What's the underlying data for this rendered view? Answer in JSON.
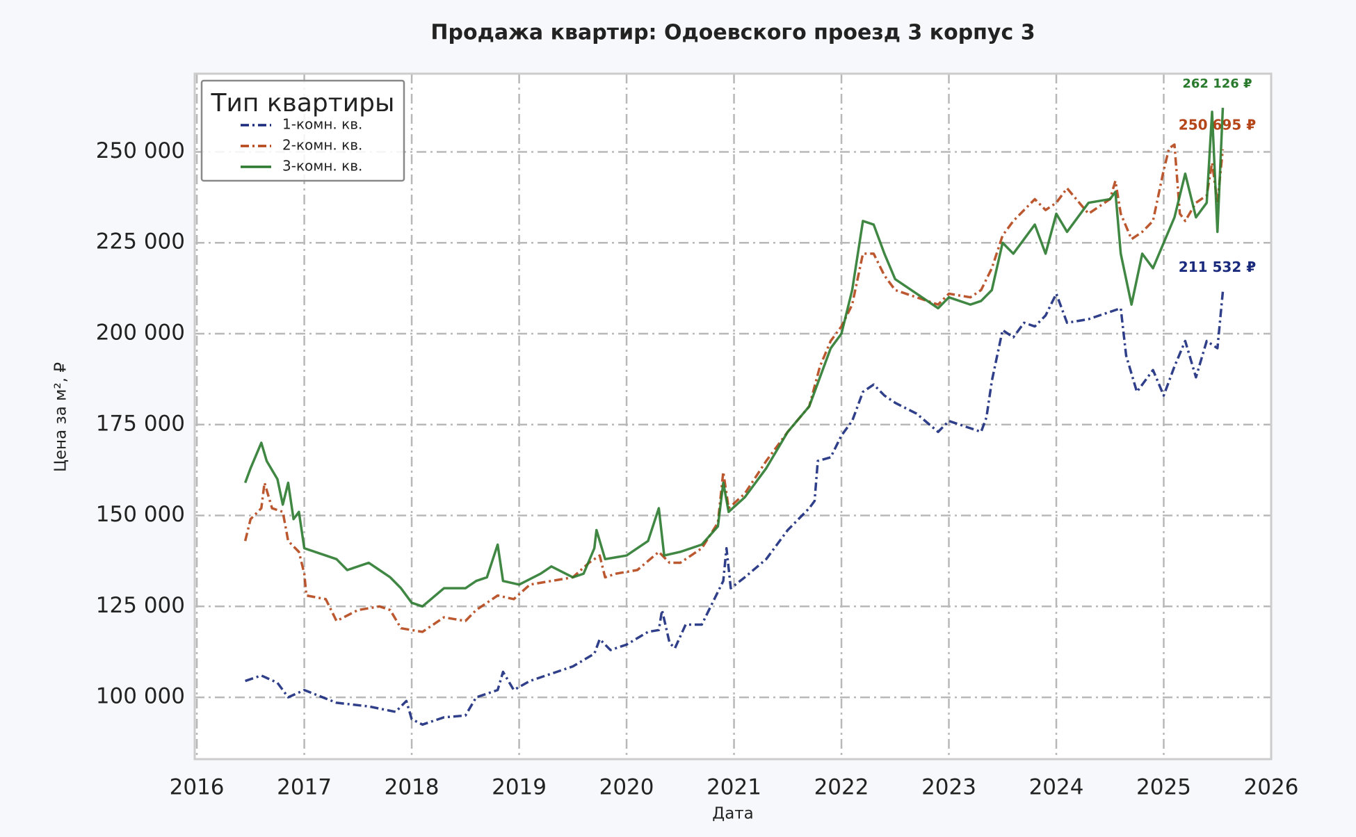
{
  "chart_data": {
    "type": "line",
    "title": "Продажа квартир: Одоевского проезд 3 корпус 3",
    "x_label": "Дата",
    "y_label": "Цена за м², ₽",
    "xlim": [
      2015.98,
      2026.0
    ],
    "xticks": [
      2016,
      2017,
      2018,
      2019,
      2020,
      2021,
      2022,
      2023,
      2024,
      2025,
      2026
    ],
    "ylim": [
      83000,
      271500
    ],
    "yticks": [
      {
        "value": 100000,
        "label": "100 000"
      },
      {
        "value": 125000,
        "label": "125 000"
      },
      {
        "value": 150000,
        "label": "150 000"
      },
      {
        "value": 175000,
        "label": "175 000"
      },
      {
        "value": 200000,
        "label": "200 000"
      },
      {
        "value": 225000,
        "label": "225 000"
      },
      {
        "value": 250000,
        "label": "250 000"
      }
    ],
    "grid": true,
    "legend": {
      "title": "Тип квартиры",
      "loc": "upper left"
    },
    "series": [
      {
        "name": "1-комн. кв.",
        "color": "#1a2a7c",
        "linestyle": "dashdot",
        "end_label": "211 532 ₽",
        "x": [
          2016.45,
          2016.6,
          2016.75,
          2016.85,
          2017.0,
          2017.3,
          2017.6,
          2017.85,
          2017.95,
          2018.0,
          2018.1,
          2018.3,
          2018.5,
          2018.6,
          2018.8,
          2018.85,
          2018.95,
          2019.1,
          2019.3,
          2019.5,
          2019.7,
          2019.75,
          2019.85,
          2020.0,
          2020.2,
          2020.3,
          2020.33,
          2020.4,
          2020.45,
          2020.55,
          2020.7,
          2020.8,
          2020.9,
          2020.93,
          2020.97,
          2021.1,
          2021.3,
          2021.5,
          2021.7,
          2021.75,
          2021.78,
          2021.9,
          2022.0,
          2022.1,
          2022.2,
          2022.3,
          2022.4,
          2022.5,
          2022.7,
          2022.9,
          2023.0,
          2023.2,
          2023.3,
          2023.35,
          2023.4,
          2023.5,
          2023.6,
          2023.7,
          2023.8,
          2023.9,
          2024.0,
          2024.1,
          2024.3,
          2024.5,
          2024.6,
          2024.65,
          2024.75,
          2024.9,
          2025.0,
          2025.1,
          2025.2,
          2025.3,
          2025.4,
          2025.5,
          2025.55
        ],
        "values": [
          104500,
          106000,
          104000,
          100000,
          102000,
          98500,
          97500,
          96000,
          99000,
          94000,
          92500,
          94500,
          95000,
          100000,
          102000,
          107000,
          102000,
          104500,
          106500,
          108500,
          112000,
          116000,
          113000,
          114500,
          118000,
          118500,
          124000,
          115000,
          113500,
          120000,
          120000,
          126000,
          132000,
          141000,
          130000,
          133000,
          138000,
          146000,
          152000,
          154000,
          165000,
          166000,
          172000,
          176000,
          184000,
          186000,
          183000,
          181000,
          178000,
          173000,
          176000,
          174000,
          173000,
          177000,
          187000,
          201000,
          199000,
          203000,
          202000,
          205000,
          211000,
          203000,
          204000,
          206000,
          207000,
          194000,
          184000,
          190000,
          183000,
          191000,
          198000,
          188000,
          198000,
          196000,
          211532
        ]
      },
      {
        "name": "2-комн. кв.",
        "color": "#b5461a",
        "linestyle": "dashdot",
        "end_label": "250 695 ₽",
        "x": [
          2016.45,
          2016.5,
          2016.6,
          2016.63,
          2016.7,
          2016.8,
          2016.85,
          2016.95,
          2017.0,
          2017.02,
          2017.2,
          2017.3,
          2017.5,
          2017.7,
          2017.8,
          2017.9,
          2018.1,
          2018.3,
          2018.5,
          2018.6,
          2018.8,
          2018.95,
          2019.1,
          2019.3,
          2019.5,
          2019.65,
          2019.75,
          2019.8,
          2019.9,
          2020.1,
          2020.3,
          2020.4,
          2020.5,
          2020.7,
          2020.85,
          2020.9,
          2020.95,
          2021.1,
          2021.3,
          2021.5,
          2021.7,
          2021.8,
          2021.9,
          2022.0,
          2022.1,
          2022.2,
          2022.3,
          2022.4,
          2022.5,
          2022.7,
          2022.9,
          2023.0,
          2023.2,
          2023.3,
          2023.4,
          2023.5,
          2023.6,
          2023.8,
          2023.9,
          2024.0,
          2024.1,
          2024.3,
          2024.5,
          2024.55,
          2024.6,
          2024.7,
          2024.8,
          2024.9,
          2025.0,
          2025.05,
          2025.1,
          2025.15,
          2025.2,
          2025.3,
          2025.4,
          2025.45,
          2025.5,
          2025.55
        ],
        "values": [
          143000,
          149000,
          152000,
          159000,
          152000,
          151000,
          143000,
          140000,
          134000,
          128000,
          127000,
          121000,
          124000,
          125000,
          124000,
          119000,
          118000,
          122000,
          121000,
          124000,
          128000,
          127000,
          131000,
          132000,
          133000,
          137000,
          139000,
          133000,
          134000,
          135000,
          140000,
          137000,
          137000,
          141000,
          148000,
          162000,
          152000,
          156000,
          165000,
          173000,
          180000,
          191000,
          198000,
          202000,
          208000,
          222000,
          222000,
          216000,
          212000,
          210000,
          208000,
          211000,
          210000,
          212000,
          218000,
          227000,
          231000,
          237000,
          234000,
          236000,
          240000,
          233000,
          237000,
          242000,
          233000,
          226000,
          228000,
          231000,
          245000,
          251000,
          252000,
          233000,
          231000,
          236000,
          238000,
          247000,
          236000,
          250695
        ]
      },
      {
        "name": "3-комн. кв.",
        "color": "#2a7a2e",
        "linestyle": "solid",
        "end_label": "262 126 ₽",
        "x": [
          2016.45,
          2016.5,
          2016.6,
          2016.65,
          2016.75,
          2016.8,
          2016.85,
          2016.9,
          2016.95,
          2017.0,
          2017.2,
          2017.3,
          2017.4,
          2017.6,
          2017.7,
          2017.8,
          2017.9,
          2018.0,
          2018.1,
          2018.3,
          2018.5,
          2018.6,
          2018.7,
          2018.8,
          2018.85,
          2019.0,
          2019.2,
          2019.3,
          2019.5,
          2019.6,
          2019.7,
          2019.72,
          2019.8,
          2020.0,
          2020.2,
          2020.3,
          2020.35,
          2020.5,
          2020.7,
          2020.85,
          2020.9,
          2020.95,
          2021.1,
          2021.3,
          2021.5,
          2021.7,
          2021.8,
          2021.9,
          2022.0,
          2022.1,
          2022.2,
          2022.3,
          2022.4,
          2022.5,
          2022.7,
          2022.9,
          2023.0,
          2023.2,
          2023.3,
          2023.4,
          2023.5,
          2023.6,
          2023.8,
          2023.9,
          2024.0,
          2024.1,
          2024.3,
          2024.5,
          2024.55,
          2024.6,
          2024.7,
          2024.8,
          2024.9,
          2025.0,
          2025.1,
          2025.2,
          2025.3,
          2025.4,
          2025.45,
          2025.5,
          2025.55
        ],
        "values": [
          159000,
          163000,
          170000,
          165000,
          160000,
          153000,
          159000,
          149000,
          151000,
          141000,
          139000,
          138000,
          135000,
          137000,
          135000,
          133000,
          130000,
          126000,
          125000,
          130000,
          130000,
          132000,
          133000,
          142000,
          132000,
          131000,
          134000,
          136000,
          133000,
          134000,
          141000,
          146000,
          138000,
          139000,
          143000,
          152000,
          139000,
          140000,
          142000,
          147000,
          159000,
          151000,
          155000,
          163000,
          173000,
          180000,
          188000,
          196000,
          200000,
          212000,
          231000,
          230000,
          222000,
          215000,
          211000,
          207000,
          210000,
          208000,
          209000,
          212000,
          225000,
          222000,
          230000,
          222000,
          233000,
          228000,
          236000,
          237000,
          239000,
          222000,
          208000,
          222000,
          218000,
          225000,
          232000,
          244000,
          232000,
          236000,
          261000,
          228000,
          262126
        ]
      }
    ]
  }
}
